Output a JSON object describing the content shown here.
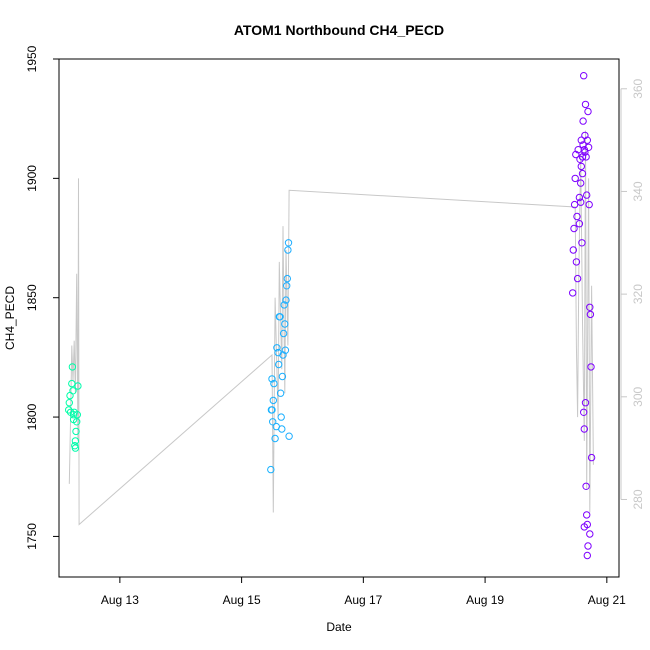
{
  "chart_data": {
    "type": "scatter",
    "title": "ATOM1 Northbound CH4_PECD",
    "xlabel": "Date",
    "ylabel": "CH4_PECD",
    "x_ticks": [
      "Aug 13",
      "Aug 15",
      "Aug 17",
      "Aug 19",
      "Aug 21"
    ],
    "x_tick_days": [
      13,
      15,
      17,
      19,
      21
    ],
    "xlim": [
      12.0,
      21.2
    ],
    "ylim": [
      1733,
      1950
    ],
    "y_ticks": [
      1750,
      1800,
      1850,
      1900,
      1950
    ],
    "y2_ticks": [
      280,
      300,
      320,
      340,
      360
    ],
    "y2lim": [
      264.9,
      365.8
    ],
    "grid": false,
    "colors": {
      "line": "#c8c8c8",
      "right_axis": "#c8c8c8",
      "point_gradient": [
        "#00ffa6",
        "#00c8ff",
        "#2aa0ff",
        "#6a00ff",
        "#7f00ff"
      ]
    },
    "line_series": [
      [
        12.17,
        1772
      ],
      [
        12.19,
        1800
      ],
      [
        12.21,
        1830
      ],
      [
        12.23,
        1815
      ],
      [
        12.25,
        1832
      ],
      [
        12.27,
        1810
      ],
      [
        12.29,
        1860
      ],
      [
        12.31,
        1790
      ],
      [
        12.32,
        1900
      ],
      [
        12.33,
        1755
      ],
      [
        15.5,
        1826
      ],
      [
        15.52,
        1760
      ],
      [
        15.55,
        1850
      ],
      [
        15.6,
        1800
      ],
      [
        15.62,
        1865
      ],
      [
        15.66,
        1820
      ],
      [
        15.68,
        1880
      ],
      [
        15.71,
        1810
      ],
      [
        15.73,
        1870
      ],
      [
        15.76,
        1830
      ],
      [
        15.78,
        1895
      ],
      [
        20.48,
        1888
      ],
      [
        20.5,
        1830
      ],
      [
        20.52,
        1800
      ],
      [
        20.54,
        1860
      ],
      [
        20.57,
        1910
      ],
      [
        20.6,
        1840
      ],
      [
        20.63,
        1790
      ],
      [
        20.65,
        1920
      ],
      [
        20.67,
        1770
      ],
      [
        20.7,
        1900
      ],
      [
        20.72,
        1760
      ],
      [
        20.75,
        1855
      ],
      [
        20.78,
        1780
      ]
    ],
    "points": [
      {
        "x": 12.16,
        "y": 1803
      },
      {
        "x": 12.17,
        "y": 1806
      },
      {
        "x": 12.18,
        "y": 1809
      },
      {
        "x": 12.19,
        "y": 1802
      },
      {
        "x": 12.21,
        "y": 1814
      },
      {
        "x": 12.22,
        "y": 1821
      },
      {
        "x": 12.23,
        "y": 1811
      },
      {
        "x": 12.24,
        "y": 1801
      },
      {
        "x": 12.25,
        "y": 1802
      },
      {
        "x": 12.26,
        "y": 1788
      },
      {
        "x": 12.27,
        "y": 1790
      },
      {
        "x": 12.28,
        "y": 1794
      },
      {
        "x": 12.29,
        "y": 1798
      },
      {
        "x": 12.3,
        "y": 1801
      },
      {
        "x": 12.31,
        "y": 1813
      },
      {
        "x": 12.27,
        "y": 1787
      },
      {
        "x": 12.24,
        "y": 1799
      },
      {
        "x": 15.48,
        "y": 1778
      },
      {
        "x": 15.49,
        "y": 1803
      },
      {
        "x": 15.5,
        "y": 1816
      },
      {
        "x": 15.51,
        "y": 1798
      },
      {
        "x": 15.52,
        "y": 1807
      },
      {
        "x": 15.53,
        "y": 1814
      },
      {
        "x": 15.55,
        "y": 1791
      },
      {
        "x": 15.57,
        "y": 1796
      },
      {
        "x": 15.58,
        "y": 1829
      },
      {
        "x": 15.6,
        "y": 1827
      },
      {
        "x": 15.61,
        "y": 1822
      },
      {
        "x": 15.62,
        "y": 1842
      },
      {
        "x": 15.64,
        "y": 1810
      },
      {
        "x": 15.65,
        "y": 1800
      },
      {
        "x": 15.66,
        "y": 1795
      },
      {
        "x": 15.67,
        "y": 1817
      },
      {
        "x": 15.68,
        "y": 1826
      },
      {
        "x": 15.69,
        "y": 1835
      },
      {
        "x": 15.7,
        "y": 1847
      },
      {
        "x": 15.71,
        "y": 1839
      },
      {
        "x": 15.72,
        "y": 1828
      },
      {
        "x": 15.73,
        "y": 1849
      },
      {
        "x": 15.74,
        "y": 1855
      },
      {
        "x": 15.75,
        "y": 1858
      },
      {
        "x": 15.76,
        "y": 1870
      },
      {
        "x": 15.77,
        "y": 1873
      },
      {
        "x": 15.78,
        "y": 1792
      },
      {
        "x": 15.5,
        "y": 1803
      },
      {
        "x": 15.63,
        "y": 1842
      },
      {
        "x": 20.44,
        "y": 1852
      },
      {
        "x": 20.45,
        "y": 1870
      },
      {
        "x": 20.46,
        "y": 1879
      },
      {
        "x": 20.47,
        "y": 1889
      },
      {
        "x": 20.48,
        "y": 1900
      },
      {
        "x": 20.49,
        "y": 1910
      },
      {
        "x": 20.5,
        "y": 1865
      },
      {
        "x": 20.51,
        "y": 1884
      },
      {
        "x": 20.52,
        "y": 1858
      },
      {
        "x": 20.53,
        "y": 1912
      },
      {
        "x": 20.55,
        "y": 1892
      },
      {
        "x": 20.56,
        "y": 1908
      },
      {
        "x": 20.57,
        "y": 1898
      },
      {
        "x": 20.58,
        "y": 1916
      },
      {
        "x": 20.59,
        "y": 1873
      },
      {
        "x": 20.6,
        "y": 1902
      },
      {
        "x": 20.61,
        "y": 1924
      },
      {
        "x": 20.62,
        "y": 1943
      },
      {
        "x": 20.63,
        "y": 1912
      },
      {
        "x": 20.64,
        "y": 1918
      },
      {
        "x": 20.65,
        "y": 1931
      },
      {
        "x": 20.66,
        "y": 1909
      },
      {
        "x": 20.67,
        "y": 1893
      },
      {
        "x": 20.68,
        "y": 1916
      },
      {
        "x": 20.69,
        "y": 1928
      },
      {
        "x": 20.7,
        "y": 1913
      },
      {
        "x": 20.71,
        "y": 1889
      },
      {
        "x": 20.72,
        "y": 1846
      },
      {
        "x": 20.73,
        "y": 1843
      },
      {
        "x": 20.74,
        "y": 1821
      },
      {
        "x": 20.75,
        "y": 1783
      },
      {
        "x": 20.62,
        "y": 1802
      },
      {
        "x": 20.63,
        "y": 1795
      },
      {
        "x": 20.65,
        "y": 1806
      },
      {
        "x": 20.66,
        "y": 1771
      },
      {
        "x": 20.67,
        "y": 1759
      },
      {
        "x": 20.68,
        "y": 1755
      },
      {
        "x": 20.63,
        "y": 1754
      },
      {
        "x": 20.69,
        "y": 1746
      },
      {
        "x": 20.68,
        "y": 1742
      },
      {
        "x": 20.72,
        "y": 1751
      },
      {
        "x": 20.6,
        "y": 1909
      },
      {
        "x": 20.61,
        "y": 1914
      },
      {
        "x": 20.64,
        "y": 1911
      },
      {
        "x": 20.58,
        "y": 1905
      },
      {
        "x": 20.57,
        "y": 1890
      },
      {
        "x": 20.55,
        "y": 1881
      }
    ]
  }
}
